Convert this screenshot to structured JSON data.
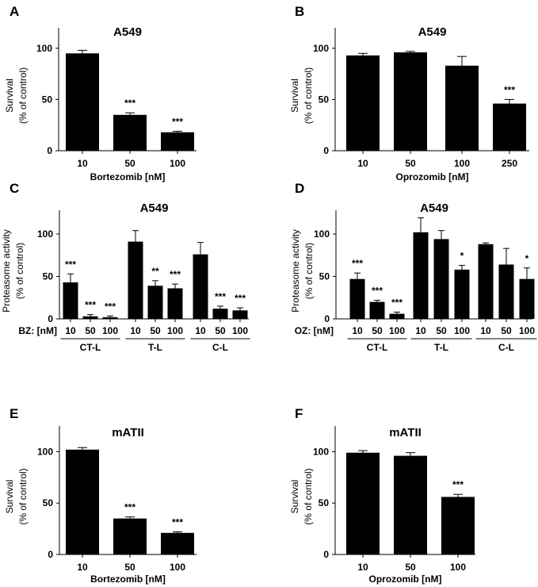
{
  "chart_data": [
    {
      "panel": "A",
      "type": "bar",
      "title": "A549",
      "ylabel": [
        "Survival",
        "(% of control)"
      ],
      "ylim": [
        0,
        120
      ],
      "yticks": [
        0,
        50,
        100
      ],
      "xlabel": "Bortezomib [nM]",
      "categories": [
        "10",
        "50",
        "100"
      ],
      "values": [
        95,
        35,
        18
      ],
      "errors": [
        3,
        2,
        1
      ],
      "significance": [
        "",
        "***",
        "***"
      ]
    },
    {
      "panel": "B",
      "type": "bar",
      "title": "A549",
      "ylabel": [
        "Survival",
        "(% of control)"
      ],
      "ylim": [
        0,
        120
      ],
      "yticks": [
        0,
        50,
        100
      ],
      "xlabel": "Oprozomib [nM]",
      "categories": [
        "10",
        "50",
        "100",
        "250"
      ],
      "values": [
        93,
        96,
        83,
        46
      ],
      "errors": [
        2,
        1,
        9,
        4
      ],
      "significance": [
        "",
        "",
        "",
        "***"
      ]
    },
    {
      "panel": "C",
      "type": "bar",
      "title": "A549",
      "ylabel": [
        "Proteasome activity",
        "(% of control)"
      ],
      "ylim": [
        0,
        128
      ],
      "yticks": [
        0,
        50,
        100
      ],
      "xprefix": "BZ: [nM]",
      "categories": [
        "10",
        "50",
        "100",
        "10",
        "50",
        "100",
        "10",
        "50",
        "100"
      ],
      "groups": [
        {
          "name": "CT-L",
          "start": 0,
          "count": 3
        },
        {
          "name": "T-L",
          "start": 3,
          "count": 3
        },
        {
          "name": "C-L",
          "start": 6,
          "count": 3
        }
      ],
      "values": [
        43,
        3,
        2,
        91,
        39,
        36,
        76,
        12,
        10
      ],
      "errors": [
        10,
        2,
        1.5,
        13,
        6,
        5,
        14,
        3,
        3
      ],
      "significance": [
        "***",
        "***",
        "***",
        "",
        "**",
        "***",
        "",
        "***",
        "***"
      ]
    },
    {
      "panel": "D",
      "type": "bar",
      "title": "A549",
      "ylabel": [
        "Proteasome activity",
        "(% of control)"
      ],
      "ylim": [
        0,
        128
      ],
      "yticks": [
        0,
        50,
        100
      ],
      "xprefix": "OZ: [nM]",
      "categories": [
        "10",
        "50",
        "100",
        "10",
        "50",
        "100",
        "10",
        "50",
        "100"
      ],
      "groups": [
        {
          "name": "CT-L",
          "start": 0,
          "count": 3
        },
        {
          "name": "T-L",
          "start": 3,
          "count": 3
        },
        {
          "name": "C-L",
          "start": 6,
          "count": 3
        }
      ],
      "values": [
        47,
        20,
        6,
        102,
        94,
        58,
        88,
        64,
        47
      ],
      "errors": [
        7,
        2,
        2,
        17,
        10,
        5,
        1.5,
        19,
        13
      ],
      "significance": [
        "***",
        "***",
        "***",
        "",
        "",
        "*",
        "",
        "",
        "*"
      ]
    },
    {
      "panel": "E",
      "type": "bar",
      "title": "mATII",
      "ylabel": [
        "Survival",
        "(% of control)"
      ],
      "ylim": [
        0,
        125
      ],
      "yticks": [
        0,
        50,
        100
      ],
      "xlabel": "Bortezomib [nM]",
      "categories": [
        "10",
        "50",
        "100"
      ],
      "values": [
        102,
        35,
        21
      ],
      "errors": [
        2,
        1.5,
        1
      ],
      "significance": [
        "",
        "***",
        "***"
      ]
    },
    {
      "panel": "F",
      "type": "bar",
      "title": "mATII",
      "ylabel": [
        "Survival",
        "(% of control)"
      ],
      "ylim": [
        0,
        125
      ],
      "yticks": [
        0,
        50,
        100
      ],
      "xlabel": "Oprozomib [nM]",
      "categories": [
        "10",
        "50",
        "100"
      ],
      "values": [
        99,
        96,
        56
      ],
      "errors": [
        2,
        3,
        2.5
      ],
      "significance": [
        "",
        "",
        "***"
      ]
    }
  ]
}
